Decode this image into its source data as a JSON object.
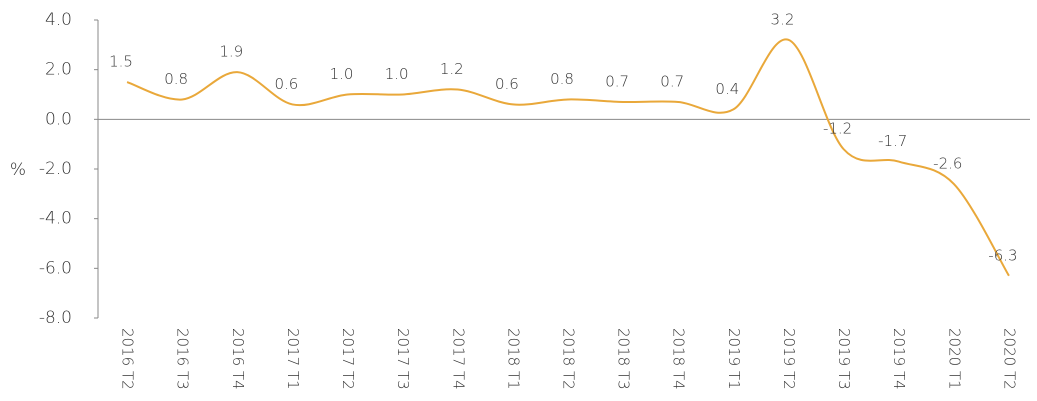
{
  "chart_data": {
    "type": "line",
    "y_label": "%",
    "categories": [
      "2016 T2",
      "2016 T3",
      "2016 T4",
      "2017 T1",
      "2017 T2",
      "2017 T3",
      "2017 T4",
      "2018 T1",
      "2018 T2",
      "2018 T3",
      "2018 T4",
      "2019 T1",
      "2019 T2",
      "2019 T3",
      "2019 T4",
      "2020 T1",
      "2020 T2"
    ],
    "series": [
      {
        "color": "#e9a83a",
        "values": [
          1.5,
          0.8,
          1.9,
          0.6,
          1.0,
          1.0,
          1.2,
          0.6,
          0.8,
          0.7,
          0.7,
          0.4,
          3.2,
          -1.2,
          -1.7,
          -2.6,
          -6.3
        ],
        "value_labels": [
          "1.5",
          "0.8",
          "1.9",
          "0.6",
          "1.0",
          "1.0",
          "1.2",
          "0.6",
          "0.8",
          "0.7",
          "0.7",
          "0.4",
          "3.2",
          "-1.2",
          "-1.7",
          "-2.6",
          "-6.3"
        ]
      }
    ],
    "ylim": [
      -8,
      4
    ],
    "yticks": [
      {
        "value": -8,
        "label": "-8.0"
      },
      {
        "value": -6,
        "label": "-6.0"
      },
      {
        "value": -4,
        "label": "-4.0"
      },
      {
        "value": -2,
        "label": "-2.0"
      },
      {
        "value": 0,
        "label": "0.0"
      },
      {
        "value": 2,
        "label": "2.0"
      },
      {
        "value": 4,
        "label": "4.0"
      }
    ]
  }
}
